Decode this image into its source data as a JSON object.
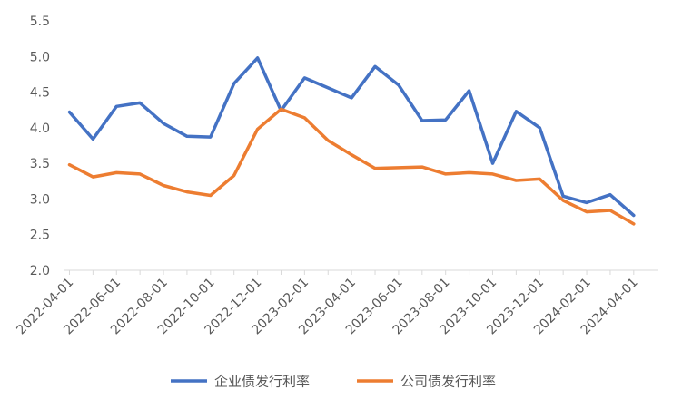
{
  "chart_data": {
    "type": "line",
    "title": "",
    "xlabel": "",
    "ylabel": "",
    "ylim": [
      2.0,
      5.5
    ],
    "yticks": [
      "2.0",
      "2.5",
      "3.0",
      "3.5",
      "4.0",
      "4.5",
      "5.0",
      "5.5"
    ],
    "xtick_labels": [
      "2022-04-01",
      "2022-06-01",
      "2022-08-01",
      "2022-10-01",
      "2022-12-01",
      "2023-02-01",
      "2023-04-01",
      "2023-06-01",
      "2023-08-01",
      "2023-10-01",
      "2023-12-01",
      "2024-02-01",
      "2024-04-01"
    ],
    "categories": [
      "2022-04-01",
      "2022-05-01",
      "2022-06-01",
      "2022-07-01",
      "2022-08-01",
      "2022-09-01",
      "2022-10-01",
      "2022-11-01",
      "2022-12-01",
      "2023-01-01",
      "2023-02-01",
      "2023-03-01",
      "2023-04-01",
      "2023-05-01",
      "2023-06-01",
      "2023-07-01",
      "2023-08-01",
      "2023-09-01",
      "2023-10-01",
      "2023-11-01",
      "2023-12-01",
      "2024-01-01",
      "2024-02-01",
      "2024-03-01",
      "2024-04-01"
    ],
    "series": [
      {
        "name": "企业债发行利率",
        "color": "#4472C4",
        "values": [
          4.22,
          3.84,
          4.3,
          4.35,
          4.06,
          3.88,
          3.87,
          4.62,
          4.98,
          4.24,
          4.7,
          4.56,
          4.42,
          4.86,
          4.6,
          4.1,
          4.11,
          4.52,
          3.5,
          4.23,
          4.0,
          3.04,
          2.95,
          3.06,
          2.77
        ]
      },
      {
        "name": "公司债发行利率",
        "color": "#ED7D31",
        "values": [
          3.48,
          3.31,
          3.37,
          3.35,
          3.19,
          3.1,
          3.05,
          3.33,
          3.98,
          4.26,
          4.14,
          3.82,
          3.62,
          3.43,
          3.44,
          3.45,
          3.35,
          3.37,
          3.35,
          3.26,
          3.28,
          2.98,
          2.82,
          2.84,
          2.65
        ]
      }
    ],
    "grid": false,
    "legend_position": "bottom"
  }
}
